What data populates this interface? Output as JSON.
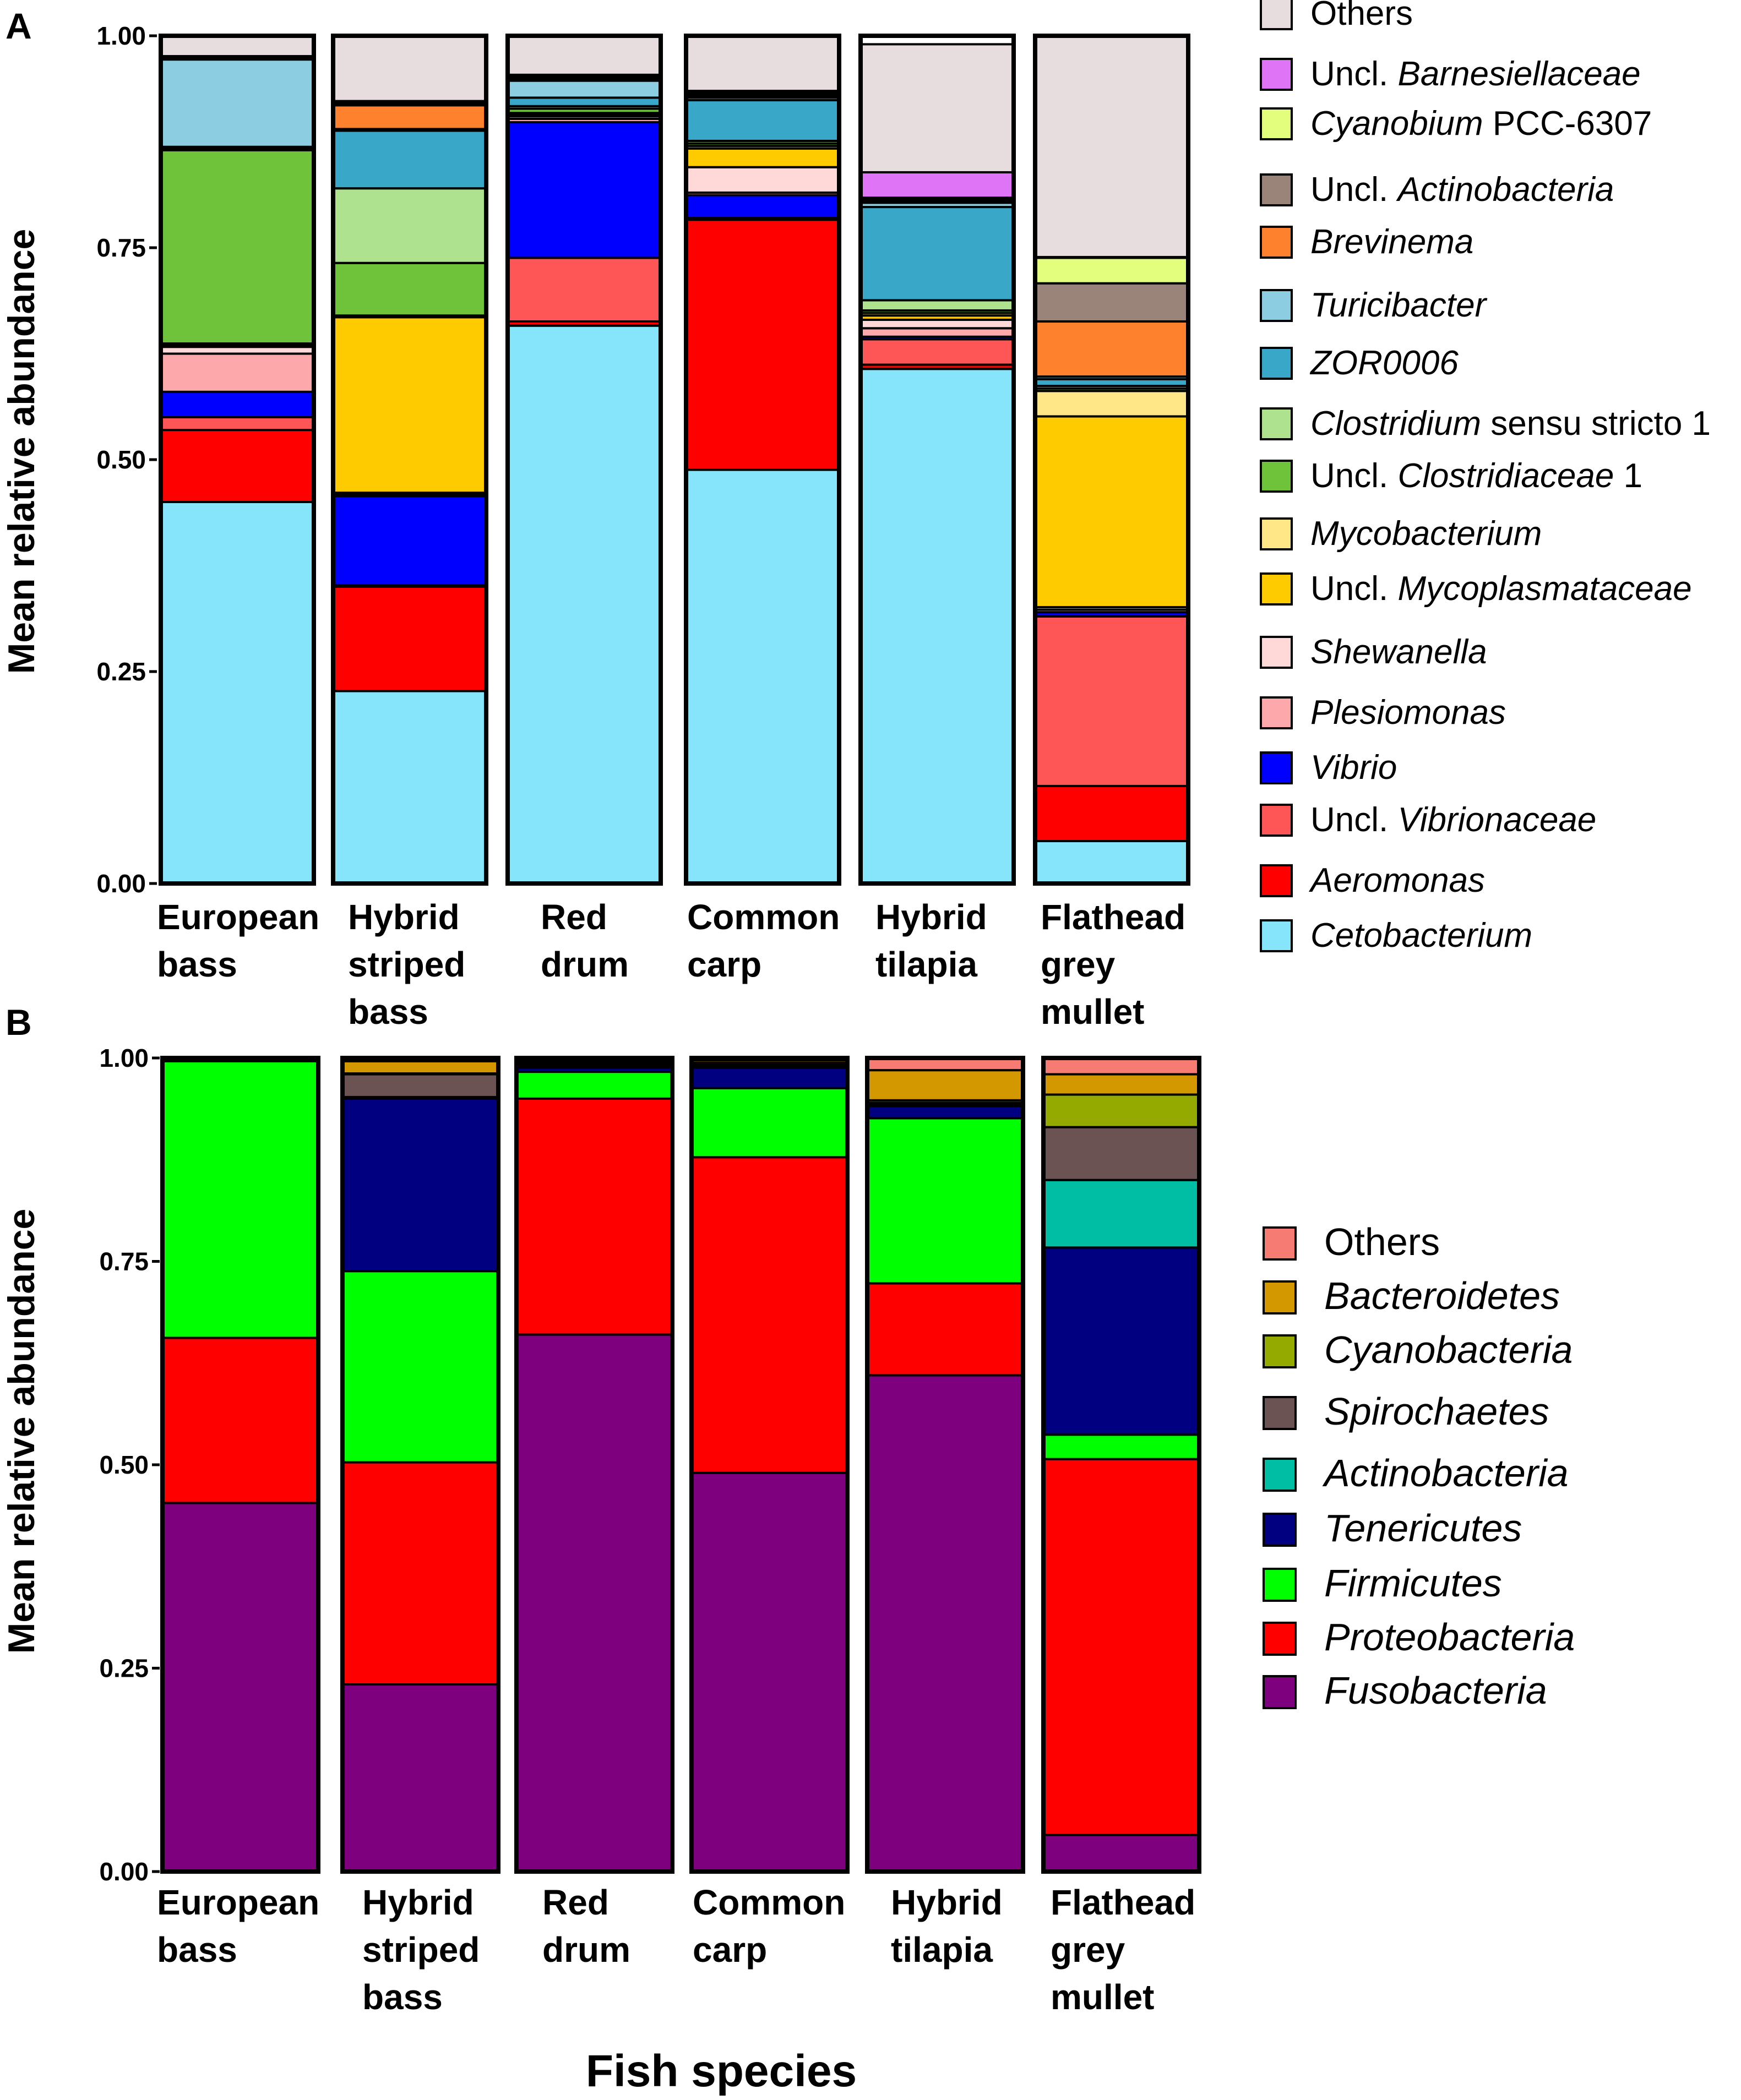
{
  "x_axis_title": "Fish species",
  "chart_data": [
    {
      "type": "bar",
      "stacked": true,
      "panel": "A",
      "title": "",
      "xlabel": "",
      "ylabel": "Mean relative abundance",
      "ylim": [
        0,
        1
      ],
      "yticks": [
        "0.00",
        "0.25",
        "0.50",
        "0.75",
        "1.00"
      ],
      "categories": [
        [
          "European",
          "bass"
        ],
        [
          "Hybrid",
          "striped",
          "bass"
        ],
        [
          "Red",
          "drum"
        ],
        [
          "Common",
          "carp"
        ],
        [
          "Hybrid",
          "tilapia"
        ],
        [
          "Flathead",
          "grey",
          "mullet"
        ]
      ],
      "series": [
        {
          "name": "Cetobacterium",
          "prefix": "",
          "italic": "Cetobacterium",
          "suffix": "",
          "color": "#86e4fb",
          "values": [
            0.45,
            0.227,
            0.658,
            0.488,
            0.607,
            0.05
          ]
        },
        {
          "name": "Aeromonas",
          "prefix": "",
          "italic": "Aeromonas",
          "suffix": "",
          "color": "#fe0000",
          "values": [
            0.085,
            0.123,
            0.005,
            0.295,
            0.005,
            0.065
          ]
        },
        {
          "name": "Uncl. Vibrionaceae",
          "prefix": "Uncl. ",
          "italic": "Vibrionaceae",
          "suffix": "",
          "color": "#fe5556",
          "values": [
            0.015,
            0.002,
            0.075,
            0.002,
            0.03,
            0.2
          ]
        },
        {
          "name": "Vibrio",
          "prefix": "",
          "italic": "Vibrio",
          "suffix": "",
          "color": "#0000fe",
          "values": [
            0.03,
            0.105,
            0.16,
            0.027,
            0.003,
            0.005
          ]
        },
        {
          "name": "Plesiomonas",
          "prefix": "",
          "italic": "Plesiomonas",
          "suffix": "",
          "color": "#fda8aa",
          "values": [
            0.045,
            0.002,
            0.004,
            0.003,
            0.01,
            0.003
          ]
        },
        {
          "name": "Shewanella",
          "prefix": "",
          "italic": "Shewanella",
          "suffix": "",
          "color": "#ffd8d8",
          "values": [
            0.008,
            0.002,
            0.003,
            0.03,
            0.01,
            0.003
          ]
        },
        {
          "name": "Uncl. Mycoplasmataceae",
          "prefix": "Uncl. ",
          "italic": "Mycoplasmataceae",
          "suffix": "",
          "color": "#fecb00",
          "values": [
            0.002,
            0.207,
            0.002,
            0.022,
            0.005,
            0.225
          ]
        },
        {
          "name": "Mycobacterium",
          "prefix": "",
          "italic": "Mycobacterium",
          "suffix": "",
          "color": "#ffe788",
          "values": [
            0.002,
            0.002,
            0.002,
            0.003,
            0.003,
            0.03
          ]
        },
        {
          "name": "Uncl. Clostridiaceae 1",
          "prefix": "Uncl. ",
          "italic": "Clostridiaceae",
          "suffix": " 1",
          "color": "#6ec33b",
          "values": [
            0.228,
            0.062,
            0.005,
            0.003,
            0.003,
            0.003
          ]
        },
        {
          "name": "Clostridium sensu stricto 1",
          "prefix": "",
          "italic": "Clostridium",
          "suffix": " sensu stricto 1",
          "color": "#aee28f",
          "values": [
            0.002,
            0.088,
            0.003,
            0.003,
            0.012,
            0.003
          ]
        },
        {
          "name": "ZOR0006",
          "prefix": "",
          "italic": "ZOR0006",
          "suffix": "",
          "color": "#38a7c8",
          "values": [
            0.002,
            0.068,
            0.01,
            0.048,
            0.11,
            0.008
          ]
        },
        {
          "name": "Turicibacter",
          "prefix": "",
          "italic": "Turicibacter",
          "suffix": "",
          "color": "#8ccde1",
          "values": [
            0.103,
            0.002,
            0.02,
            0.003,
            0.005,
            0.003
          ]
        },
        {
          "name": "Brevinema",
          "prefix": "",
          "italic": "Brevinema",
          "suffix": "",
          "color": "#fe822d",
          "values": [
            0.001,
            0.028,
            0.002,
            0.002,
            0.002,
            0.065
          ]
        },
        {
          "name": "Uncl. Actinobacteria",
          "prefix": "Uncl. ",
          "italic": "Actinobacteria",
          "suffix": "",
          "color": "#9a8378",
          "values": [
            0.001,
            0.002,
            0.002,
            0.002,
            0.002,
            0.045
          ]
        },
        {
          "name": "Cyanobium PCC-6307",
          "prefix": "",
          "italic": "Cyanobium",
          "suffix": " PCC-6307",
          "color": "#e3fd7c",
          "values": [
            0.001,
            0.002,
            0.002,
            0.002,
            0.002,
            0.03
          ]
        },
        {
          "name": "Uncl. Barnesiellaceae",
          "prefix": "Uncl. ",
          "italic": "Barnesiellaceae",
          "suffix": "",
          "color": "#df74f6",
          "values": [
            0.001,
            0.001,
            0.001,
            0.002,
            0.03,
            0.001
          ]
        },
        {
          "name": "Others",
          "prefix": "",
          "italic": "",
          "suffix": "Others",
          "color": "#e7dddf",
          "values": [
            0.024,
            0.077,
            0.046,
            0.065,
            0.151,
            0.261
          ]
        }
      ]
    },
    {
      "type": "bar",
      "stacked": true,
      "panel": "B",
      "title": "",
      "xlabel": "Fish species",
      "ylabel": "Mean relative abundance",
      "ylim": [
        0,
        1
      ],
      "yticks": [
        "0.00",
        "0.25",
        "0.50",
        "0.75",
        "1.00"
      ],
      "categories": [
        [
          "European",
          "bass"
        ],
        [
          "Hybrid",
          "striped",
          "bass"
        ],
        [
          "Red",
          "drum"
        ],
        [
          "Common",
          "carp"
        ],
        [
          "Hybrid",
          "tilapia"
        ],
        [
          "Flathead",
          "grey",
          "mullet"
        ]
      ],
      "series": [
        {
          "name": "Fusobacteria",
          "prefix": "",
          "italic": "Fusobacteria",
          "suffix": "",
          "color": "#7f007f",
          "values": [
            0.453,
            0.23,
            0.66,
            0.49,
            0.61,
            0.045
          ]
        },
        {
          "name": "Proteobacteria",
          "prefix": "",
          "italic": "Proteobacteria",
          "suffix": "",
          "color": "#fe0000",
          "values": [
            0.203,
            0.273,
            0.29,
            0.388,
            0.113,
            0.462
          ]
        },
        {
          "name": "Firmicutes",
          "prefix": "",
          "italic": "Firmicutes",
          "suffix": "",
          "color": "#00ff00",
          "values": [
            0.34,
            0.235,
            0.033,
            0.085,
            0.203,
            0.03
          ]
        },
        {
          "name": "Tenericutes",
          "prefix": "",
          "italic": "Tenericutes",
          "suffix": "",
          "color": "#010081",
          "values": [
            0.002,
            0.212,
            0.005,
            0.025,
            0.015,
            0.23
          ]
        },
        {
          "name": "Actinobacteria",
          "prefix": "",
          "italic": "Actinobacteria",
          "suffix": "",
          "color": "#00bea3",
          "values": [
            0.001,
            0.002,
            0.002,
            0.002,
            0.002,
            0.083
          ]
        },
        {
          "name": "Spirochaetes",
          "prefix": "",
          "italic": "Spirochaetes",
          "suffix": "",
          "color": "#6b5353",
          "values": [
            0.001,
            0.028,
            0.002,
            0.002,
            0.002,
            0.065
          ]
        },
        {
          "name": "Cyanobacteria",
          "prefix": "",
          "italic": "Cyanobacteria",
          "suffix": "",
          "color": "#95aa00",
          "values": [
            0.0,
            0.001,
            0.002,
            0.002,
            0.003,
            0.04
          ]
        },
        {
          "name": "Bacteroidetes",
          "prefix": "",
          "italic": "Bacteroidetes",
          "suffix": "",
          "color": "#d39700",
          "values": [
            0.0,
            0.015,
            0.002,
            0.003,
            0.037,
            0.025
          ]
        },
        {
          "name": "Others",
          "prefix": "",
          "italic": "",
          "suffix": "Others",
          "color": "#f67b73",
          "values": [
            0.0,
            0.004,
            0.004,
            0.003,
            0.015,
            0.02
          ]
        }
      ]
    }
  ]
}
